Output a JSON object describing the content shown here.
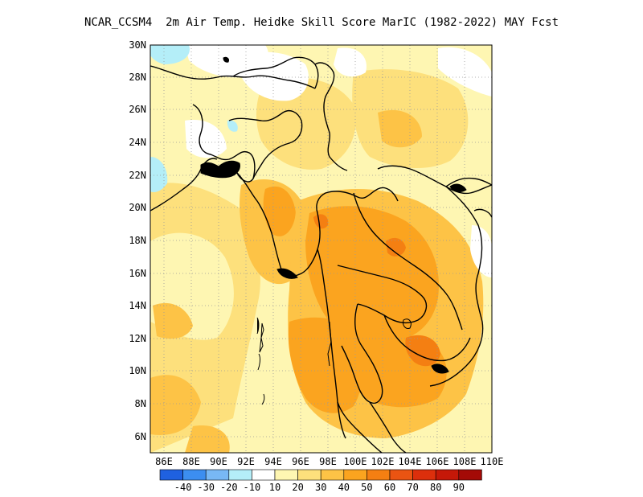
{
  "title": "NCAR_CCSM4  2m Air Temp. Heidke Skill Score MarIC (1982-2022) MAY Fcst",
  "map": {
    "lon_range": [
      85,
      110
    ],
    "lat_range": [
      5,
      30
    ],
    "lat_ticks": [
      "30N",
      "28N",
      "26N",
      "24N",
      "22N",
      "20N",
      "18N",
      "16N",
      "14N",
      "12N",
      "10N",
      "8N",
      "6N"
    ],
    "lon_ticks": [
      "86E",
      "88E",
      "90E",
      "92E",
      "94E",
      "96E",
      "98E",
      "100E",
      "102E",
      "104E",
      "106E",
      "108E",
      "110E"
    ],
    "grid": "dotted"
  },
  "colorbar": {
    "colors": [
      "#1f61e0",
      "#3c8ef0",
      "#78b8f5",
      "#b4eef8",
      "#ffffff",
      "#fef6b2",
      "#fde07c",
      "#fdc346",
      "#fba41f",
      "#f47f12",
      "#ea5412",
      "#dc2f0c",
      "#c51808",
      "#a40a06"
    ],
    "labels": [
      "-40",
      "-30",
      "-20",
      "-10",
      "10",
      "20",
      "30",
      "40",
      "50",
      "60",
      "70",
      "80",
      "90"
    ]
  }
}
